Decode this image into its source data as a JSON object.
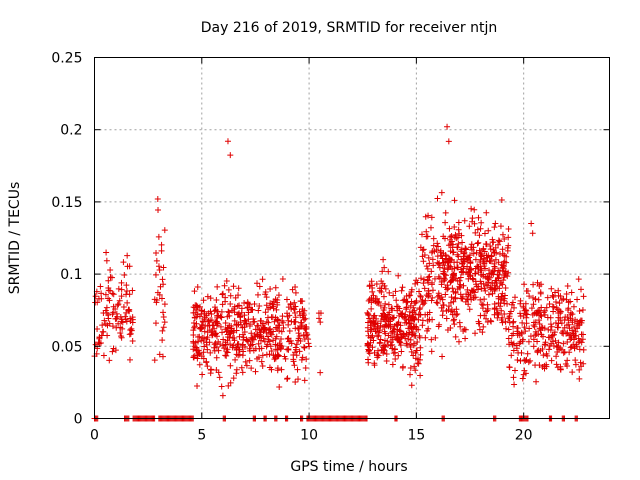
{
  "chart_data": {
    "type": "scatter",
    "title": "Day 216 of 2019, SRMTID for receiver ntjn",
    "xlabel": "GPS time / hours",
    "ylabel": "SRMTID / TECUs",
    "xlim": [
      0,
      24
    ],
    "ylim": [
      0,
      0.25
    ],
    "xticks": [
      0,
      5,
      10,
      15,
      20
    ],
    "xtick_labels": [
      "0",
      "5",
      "10",
      "15",
      "20"
    ],
    "yticks": [
      0,
      0.05,
      0.1,
      0.15,
      0.2,
      0.25
    ],
    "ytick_labels": [
      "0",
      "0.05",
      "0.1",
      "0.15",
      "0.2",
      "0.25"
    ],
    "grid": true,
    "marker": "+",
    "color": "#e00000",
    "series": [
      {
        "name": "SRMTID",
        "clusters": [
          {
            "x_range": [
              0.0,
              1.8
            ],
            "y_center": 0.075,
            "y_spread": 0.025,
            "count": 110,
            "peak": 0.115
          },
          {
            "x_range": [
              2.8,
              3.3
            ],
            "y_center": 0.09,
            "y_spread": 0.035,
            "count": 30,
            "peak": 0.152
          },
          {
            "x_range": [
              4.6,
              10.0
            ],
            "y_center": 0.06,
            "y_spread": 0.025,
            "count": 520,
            "peak": 0.192
          },
          {
            "x_range": [
              10.4,
              10.6
            ],
            "y_center": 0.045,
            "y_spread": 0.02,
            "count": 3,
            "peak": 0.073
          },
          {
            "x_range": [
              12.7,
              15.2
            ],
            "y_center": 0.065,
            "y_spread": 0.025,
            "count": 320,
            "peak": 0.11
          },
          {
            "x_range": [
              15.2,
              19.3
            ],
            "y_center": 0.1,
            "y_spread": 0.035,
            "count": 520,
            "peak": 0.202
          },
          {
            "x_range": [
              19.3,
              22.8
            ],
            "y_center": 0.06,
            "y_spread": 0.025,
            "count": 300,
            "peak": 0.135
          }
        ],
        "zero_baseline_segments": [
          [
            0.0,
            0.15
          ],
          [
            1.4,
            1.6
          ],
          [
            1.8,
            2.8
          ],
          [
            3.0,
            4.6
          ],
          [
            6.0,
            6.1
          ],
          [
            7.4,
            7.5
          ],
          [
            7.9,
            8.0
          ],
          [
            8.4,
            8.5
          ],
          [
            8.9,
            9.0
          ],
          [
            9.6,
            9.7
          ],
          [
            9.9,
            12.7
          ],
          [
            14.0,
            14.1
          ],
          [
            16.2,
            16.3
          ],
          [
            18.6,
            18.7
          ],
          [
            19.8,
            20.2
          ],
          [
            21.2,
            21.3
          ],
          [
            21.8,
            21.9
          ],
          [
            22.4,
            22.5
          ]
        ]
      }
    ]
  }
}
